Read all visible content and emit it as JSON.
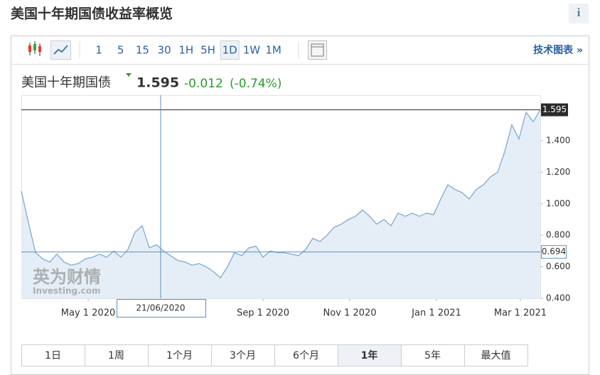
{
  "header": {
    "title": "美国十年期国债收益率概览",
    "info": "i"
  },
  "toolbar": {
    "intervals": [
      "1",
      "5",
      "15",
      "30",
      "1H",
      "5H",
      "1D",
      "1W",
      "1M"
    ],
    "selected": "1D",
    "link": "技术图表 »"
  },
  "quote": {
    "name": "美国十年期国债",
    "change": -0.012,
    "change_pct": "(-0.74%)"
  },
  "watermark": {
    "brand": "英为财情",
    "site": "Investing.com"
  },
  "ranges": {
    "items": [
      "1日",
      "1周",
      "1个月",
      "3个月",
      "6个月",
      "1年",
      "5年",
      "最大值"
    ],
    "selected": "1年"
  },
  "chart_data": {
    "type": "area",
    "xlim": [
      "2020-03-15",
      "2021-03-15"
    ],
    "xticks": [
      {
        "value": "2020-05-01",
        "label": "May 1 2020"
      },
      {
        "value": "2020-09-01",
        "label": "Sep 1 2020"
      },
      {
        "value": "2020-11-01",
        "label": "Nov 1 2020"
      },
      {
        "value": "2021-01-01",
        "label": "Jan 1 2021"
      },
      {
        "value": "2021-03-01",
        "label": "Mar 1 2021"
      }
    ],
    "ylim": [
      0.4,
      1.688
    ],
    "yticks": [
      {
        "value": 0.4,
        "label": "0.400"
      },
      {
        "value": 0.6,
        "label": "0.600"
      },
      {
        "value": 0.8,
        "label": "0.800"
      },
      {
        "value": 1.0,
        "label": "1.000"
      },
      {
        "value": 1.2,
        "label": "1.200"
      },
      {
        "value": 1.4,
        "label": "1.400"
      }
    ],
    "grid": false,
    "crosshair": {
      "x": "2020-06-21",
      "x_label": "21/06/2020",
      "y": 0.694
    },
    "series": [
      {
        "name": "美国十年期国债",
        "color": "#7ea9d2",
        "fill": "#e5eef7",
        "x": [
          "2020-03-15",
          "2020-03-20",
          "2020-03-25",
          "2020-03-30",
          "2020-04-04",
          "2020-04-09",
          "2020-04-14",
          "2020-04-19",
          "2020-04-24",
          "2020-04-29",
          "2020-05-04",
          "2020-05-09",
          "2020-05-14",
          "2020-05-19",
          "2020-05-24",
          "2020-05-29",
          "2020-06-03",
          "2020-06-08",
          "2020-06-13",
          "2020-06-18",
          "2020-06-23",
          "2020-06-28",
          "2020-07-03",
          "2020-07-08",
          "2020-07-13",
          "2020-07-18",
          "2020-07-23",
          "2020-07-28",
          "2020-08-02",
          "2020-08-07",
          "2020-08-12",
          "2020-08-17",
          "2020-08-22",
          "2020-08-27",
          "2020-09-01",
          "2020-09-06",
          "2020-09-11",
          "2020-09-16",
          "2020-09-21",
          "2020-09-26",
          "2020-10-01",
          "2020-10-06",
          "2020-10-11",
          "2020-10-16",
          "2020-10-21",
          "2020-10-26",
          "2020-10-31",
          "2020-11-05",
          "2020-11-10",
          "2020-11-15",
          "2020-11-20",
          "2020-11-25",
          "2020-11-30",
          "2020-12-05",
          "2020-12-10",
          "2020-12-15",
          "2020-12-20",
          "2020-12-25",
          "2020-12-30",
          "2021-01-04",
          "2021-01-09",
          "2021-01-14",
          "2021-01-19",
          "2021-01-24",
          "2021-01-29",
          "2021-02-03",
          "2021-02-08",
          "2021-02-13",
          "2021-02-18",
          "2021-02-23",
          "2021-02-28",
          "2021-03-05",
          "2021-03-10",
          "2021-03-15"
        ],
        "values": [
          1.08,
          0.88,
          0.69,
          0.65,
          0.63,
          0.68,
          0.63,
          0.61,
          0.62,
          0.65,
          0.66,
          0.68,
          0.66,
          0.7,
          0.66,
          0.71,
          0.82,
          0.86,
          0.72,
          0.74,
          0.7,
          0.67,
          0.64,
          0.63,
          0.61,
          0.62,
          0.6,
          0.57,
          0.53,
          0.6,
          0.69,
          0.67,
          0.72,
          0.73,
          0.66,
          0.7,
          0.69,
          0.69,
          0.68,
          0.67,
          0.71,
          0.78,
          0.76,
          0.8,
          0.85,
          0.87,
          0.9,
          0.92,
          0.96,
          0.92,
          0.87,
          0.9,
          0.86,
          0.94,
          0.92,
          0.94,
          0.92,
          0.94,
          0.93,
          1.03,
          1.12,
          1.09,
          1.07,
          1.03,
          1.09,
          1.12,
          1.17,
          1.2,
          1.33,
          1.5,
          1.41,
          1.58,
          1.52,
          1.595
        ]
      }
    ]
  }
}
